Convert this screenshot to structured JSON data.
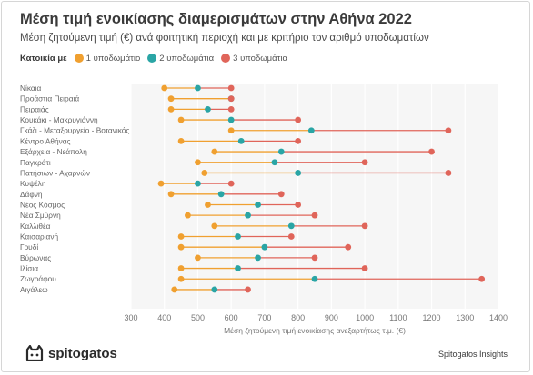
{
  "header": {
    "title": "Μέση τιμή ενοικίασης διαμερισμάτων στην Αθήνα 2022",
    "subtitle": "Μέση ζητούμενη τιμή (€) ανά φοιτητική περιοχή και με κριτήριο τον αριθμό υποδωματίων"
  },
  "legend": {
    "title": "Κατοικία με",
    "items": [
      {
        "label": "1 υποδωμάτιο",
        "color": "#f0a030"
      },
      {
        "label": "2 υποδωμάτια",
        "color": "#2aa5a5"
      },
      {
        "label": "3 υποδωμάτια",
        "color": "#e0655a"
      }
    ]
  },
  "footer": {
    "brand": "spitogatos",
    "source": "Spitogatos Insights"
  },
  "chart_data": {
    "type": "dumbbell",
    "title": "Μέση τιμή ενοικίασης διαμερισμάτων στην Αθήνα 2022",
    "xlabel": "Μέση ζητούμενη τιμή ενοικίασης ανεξαρτήτως τ.μ. (€)",
    "ylabel": "",
    "xlim": [
      300,
      1400
    ],
    "xticks": [
      300,
      400,
      500,
      600,
      700,
      800,
      900,
      1000,
      1100,
      1200,
      1300,
      1400
    ],
    "grid": true,
    "legend_position": "top-left",
    "categories": [
      "Νίκαια",
      "Προάστια Πειραιά",
      "Πειραιάς",
      "Κουκάκι - Μακρυγιάννη",
      "Γκάζι - Μεταξουργείο - Βοτανικός",
      "Κέντρο Αθήνας",
      "Εξάρχεια - Νεάπολη",
      "Παγκράτι",
      "Πατήσιων - Αχαρνών",
      "Κυψέλη",
      "Δάφνη",
      "Νέος Κόσμος",
      "Νέα Σμύρνη",
      "Καλλιθέα",
      "Καισαριανή",
      "Γουδί",
      "Βύρωνας",
      "Ιλίσια",
      "Ζωγράφου",
      "Αιγάλεω"
    ],
    "series": [
      {
        "name": "1 υποδωμάτιο",
        "values": [
          400,
          420,
          420,
          450,
          600,
          450,
          550,
          500,
          520,
          390,
          420,
          530,
          470,
          550,
          450,
          450,
          500,
          450,
          450,
          430
        ]
      },
      {
        "name": "2 υποδωμάτια",
        "values": [
          500,
          600,
          530,
          600,
          840,
          630,
          750,
          730,
          800,
          500,
          570,
          680,
          650,
          780,
          620,
          700,
          680,
          620,
          850,
          550
        ]
      },
      {
        "name": "3 υποδωμάτια",
        "values": [
          600,
          600,
          600,
          800,
          1250,
          800,
          1200,
          1000,
          1250,
          600,
          750,
          800,
          850,
          1000,
          780,
          950,
          850,
          1000,
          1350,
          650
        ]
      }
    ]
  }
}
